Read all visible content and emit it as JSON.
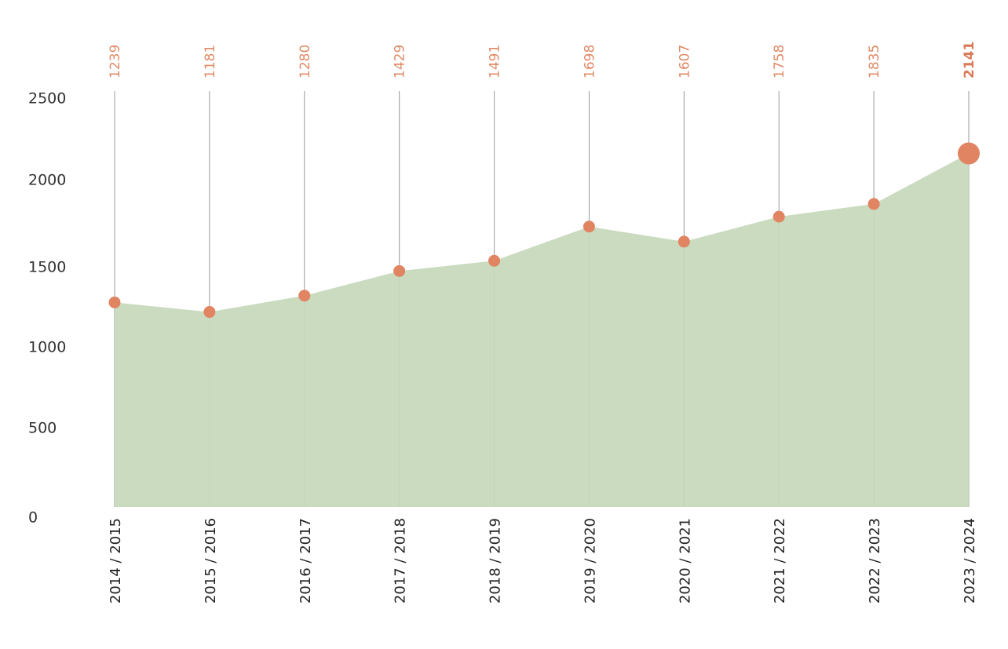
{
  "chart_data": {
    "type": "area",
    "categories": [
      "2014 / 2015",
      "2015 / 2016",
      "2016 / 2017",
      "2017 / 2018",
      "2018 / 2019",
      "2019 / 2020",
      "2020 / 2021",
      "2021 / 2022",
      "2022 / 2023",
      "2023 / 2024"
    ],
    "series": [
      {
        "values": [
          1239,
          1181,
          1280,
          1429,
          1491,
          1698,
          1607,
          1758,
          1835,
          2141
        ]
      }
    ],
    "value_labels": [
      "1239",
      "1181",
      "1280",
      "1429",
      "1491",
      "1698",
      "1607",
      "1758",
      "1835",
      "2141"
    ],
    "highlight_index": 9,
    "yticks": [
      "0",
      "500",
      "1000",
      "1500",
      "2000",
      "2500"
    ],
    "ylim": [
      0,
      2500
    ],
    "grid": false,
    "legend": "none",
    "colors": {
      "area": "#c5d8bb",
      "marker": "#e08462",
      "stem": "#9a9a9a",
      "value_label": "#e08a66"
    }
  }
}
